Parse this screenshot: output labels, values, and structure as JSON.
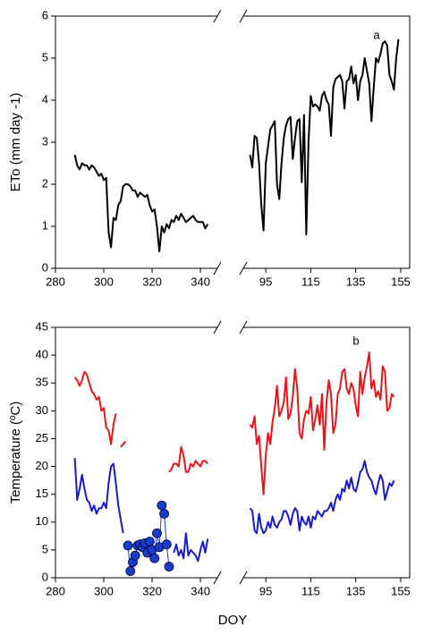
{
  "chart_data": [
    {
      "type": "line",
      "ylabel": "ETo (mm day -1)",
      "annotation": "a",
      "xlim": [
        280,
        347
      ],
      "xticks": [
        280,
        300,
        320,
        340
      ],
      "x2lim": [
        85,
        159
      ],
      "x2ticks": [
        95,
        115,
        135,
        155
      ],
      "ylim": [
        0,
        6
      ],
      "yticks": [
        0,
        1,
        2,
        3,
        4,
        5,
        6
      ],
      "series": [
        {
          "color": "#000000",
          "x": [
            288,
            289,
            290,
            291,
            292,
            293,
            294,
            295,
            296,
            297,
            298,
            299,
            300,
            301,
            302,
            303,
            304,
            305,
            306,
            307,
            308,
            309,
            310,
            311,
            312,
            313,
            314,
            315,
            316,
            317,
            318,
            319,
            320,
            321,
            322,
            323,
            324,
            325,
            326,
            327,
            328,
            329,
            330,
            331,
            332,
            333,
            334,
            335,
            336,
            337,
            338,
            339,
            340,
            341,
            342,
            343
          ],
          "values": [
            2.7,
            2.45,
            2.35,
            2.5,
            2.45,
            2.45,
            2.35,
            2.45,
            2.4,
            2.3,
            2.2,
            2.25,
            2.1,
            2.15,
            0.85,
            0.5,
            1.2,
            1.15,
            1.5,
            1.6,
            1.95,
            2.0,
            2.0,
            1.95,
            1.85,
            1.85,
            1.7,
            1.8,
            1.75,
            1.7,
            1.75,
            1.5,
            1.35,
            1.4,
            1.0,
            0.4,
            1.0,
            0.85,
            1.05,
            0.95,
            1.15,
            1.1,
            1.25,
            1.15,
            1.3,
            1.2,
            1.1,
            1.15,
            1.2,
            1.25,
            1.15,
            1.1,
            1.1,
            1.1,
            0.95,
            1.05
          ]
        },
        {
          "color": "#000000",
          "axis": "x2",
          "x": [
            88,
            89,
            90,
            91,
            92,
            93,
            94,
            95,
            96,
            97,
            98,
            99,
            100,
            101,
            102,
            103,
            104,
            105,
            106,
            107,
            108,
            109,
            110,
            111,
            112,
            113,
            114,
            115,
            116,
            117,
            118,
            119,
            120,
            121,
            122,
            123,
            124,
            125,
            126,
            127,
            128,
            129,
            130,
            131,
            132,
            133,
            134,
            135,
            136,
            137,
            138,
            139,
            140,
            141,
            142,
            143,
            144,
            145,
            146,
            147,
            148,
            149,
            150,
            151,
            152,
            153,
            154
          ],
          "values": [
            2.7,
            2.4,
            3.15,
            3.1,
            2.5,
            1.5,
            0.9,
            2.5,
            2.9,
            3.3,
            3.4,
            3.5,
            2.0,
            1.65,
            2.5,
            3.1,
            3.4,
            3.55,
            3.6,
            2.6,
            3.1,
            3.5,
            3.55,
            2.05,
            3.65,
            0.8,
            3.0,
            4.1,
            3.85,
            3.9,
            3.85,
            3.75,
            4.1,
            4.2,
            4.0,
            3.9,
            3.15,
            4.3,
            4.5,
            4.55,
            4.6,
            4.45,
            3.8,
            4.45,
            4.5,
            4.8,
            4.4,
            4.6,
            4.0,
            4.45,
            4.6,
            5.0,
            4.7,
            4.4,
            3.5,
            4.3,
            5.0,
            4.9,
            5.1,
            5.35,
            5.4,
            5.3,
            4.6,
            4.45,
            4.25,
            5.0,
            5.45
          ]
        }
      ]
    },
    {
      "type": "line",
      "ylabel": "Temperature (ºC)",
      "xlabel": "DOY",
      "annotation": "b",
      "xlim": [
        280,
        347
      ],
      "xticks": [
        280,
        300,
        320,
        340
      ],
      "x2lim": [
        85,
        159
      ],
      "x2ticks": [
        95,
        115,
        135,
        155
      ],
      "ylim": [
        0,
        45
      ],
      "yticks": [
        0,
        5,
        10,
        15,
        20,
        25,
        30,
        35,
        40,
        45
      ],
      "series": [
        {
          "color": "#e8141a",
          "x": [
            288,
            289,
            290,
            291,
            292,
            293,
            294,
            295,
            296,
            297,
            298,
            299,
            300,
            301,
            302,
            303,
            304,
            305,
            306,
            307,
            308,
            309
          ],
          "values": [
            36,
            35.5,
            34.5,
            35.5,
            37,
            36.5,
            35,
            33.5,
            33,
            32,
            32.5,
            30,
            30.5,
            27,
            26.5,
            24,
            27.5,
            29.5,
            null,
            23.5,
            24,
            24.5
          ]
        },
        {
          "color": "#e8141a",
          "x": [
            327,
            328,
            329,
            330,
            331,
            332,
            333,
            334,
            335,
            336,
            337,
            338,
            339,
            340,
            341,
            342,
            343
          ],
          "values": [
            19,
            19.5,
            20.5,
            20.5,
            20,
            23.5,
            22,
            19,
            19,
            20.5,
            20,
            21,
            20.5,
            20,
            21,
            21,
            20.5
          ]
        },
        {
          "color": "#1a1ac8",
          "x": [
            288,
            289,
            290,
            291,
            292,
            293,
            294,
            295,
            296,
            297,
            298,
            299,
            300,
            301,
            302,
            303,
            304,
            305,
            306,
            307,
            308
          ],
          "values": [
            21.5,
            14,
            16,
            18.5,
            16,
            14,
            13.5,
            12,
            13,
            11.5,
            12.5,
            12.5,
            13.5,
            12.5,
            17,
            20,
            20.5,
            17,
            13,
            10.5,
            8
          ]
        },
        {
          "color": "#1a3cc8",
          "marker": "circle",
          "x": [
            310,
            311,
            312,
            313,
            314,
            315,
            316,
            317,
            318,
            319,
            320,
            321,
            322,
            323,
            324,
            325,
            326,
            327
          ],
          "values": [
            5.8,
            1.2,
            2.8,
            4,
            5.8,
            6,
            5.5,
            6.2,
            4.5,
            6.5,
            5,
            3.5,
            8,
            5.5,
            13,
            11.5,
            6,
            2
          ]
        },
        {
          "color": "#1a1ac8",
          "x": [
            329,
            330,
            331,
            332,
            333,
            334,
            335,
            336,
            337,
            338,
            339,
            340,
            341,
            342,
            343
          ],
          "values": [
            4.5,
            6,
            4,
            5,
            3.5,
            8,
            4,
            5,
            4.5,
            4,
            3,
            5,
            6.5,
            4.5,
            7
          ]
        },
        {
          "color": "#e8141a",
          "axis": "x2",
          "x": [
            88,
            89,
            90,
            91,
            92,
            93,
            94,
            95,
            96,
            97,
            98,
            99,
            100,
            101,
            102,
            103,
            104,
            105,
            106,
            107,
            108,
            109,
            110,
            111,
            112,
            113,
            114,
            115,
            116,
            117,
            118,
            119,
            120,
            121,
            122,
            123,
            124,
            125,
            126,
            127,
            128,
            129,
            130,
            131,
            132,
            133,
            134,
            135,
            136,
            137,
            138,
            139,
            140,
            141,
            142,
            143,
            144,
            145,
            146,
            147,
            148,
            149,
            150,
            151,
            152
          ],
          "values": [
            27.5,
            27,
            29,
            24,
            25.5,
            20,
            15,
            22,
            26,
            24,
            28,
            30.5,
            34.5,
            29,
            30,
            31.5,
            36,
            28.5,
            29.5,
            32.5,
            37.5,
            34,
            26,
            25,
            28.5,
            30,
            29.5,
            32.5,
            26.5,
            28.5,
            31,
            27.5,
            33,
            23,
            31.5,
            35.5,
            33,
            26,
            27.5,
            33,
            34,
            37,
            37.5,
            34,
            33,
            35,
            34,
            31,
            29,
            37,
            33,
            36,
            38,
            40.5,
            34,
            35.5,
            32.5,
            33.5,
            32,
            38,
            37,
            30,
            30.5,
            33,
            32.5
          ]
        },
        {
          "color": "#1a1ac8",
          "axis": "x2",
          "x": [
            88,
            89,
            90,
            91,
            92,
            93,
            94,
            95,
            96,
            97,
            98,
            99,
            100,
            101,
            102,
            103,
            104,
            105,
            106,
            107,
            108,
            109,
            110,
            111,
            112,
            113,
            114,
            115,
            116,
            117,
            118,
            119,
            120,
            121,
            122,
            123,
            124,
            125,
            126,
            127,
            128,
            129,
            130,
            131,
            132,
            133,
            134,
            135,
            136,
            137,
            138,
            139,
            140,
            141,
            142,
            143,
            144,
            145,
            146,
            147,
            148,
            149,
            150,
            151,
            152
          ],
          "values": [
            12.5,
            12,
            8.5,
            8,
            11.5,
            9,
            8,
            8.5,
            10,
            9,
            11,
            9.5,
            9,
            10,
            10.5,
            12,
            12,
            11,
            9.5,
            11.5,
            12.5,
            12,
            8.5,
            11,
            10,
            9.5,
            11,
            9,
            11,
            10.5,
            12,
            11.5,
            11,
            12,
            12,
            12.5,
            13.5,
            12,
            14,
            15,
            14,
            16,
            15.5,
            17.5,
            16,
            18,
            16,
            15.5,
            17,
            19,
            19.5,
            21,
            19,
            18,
            17.5,
            16,
            15,
            17,
            18.5,
            17.5,
            14,
            15.5,
            17,
            16.5,
            17.5
          ]
        }
      ]
    }
  ]
}
